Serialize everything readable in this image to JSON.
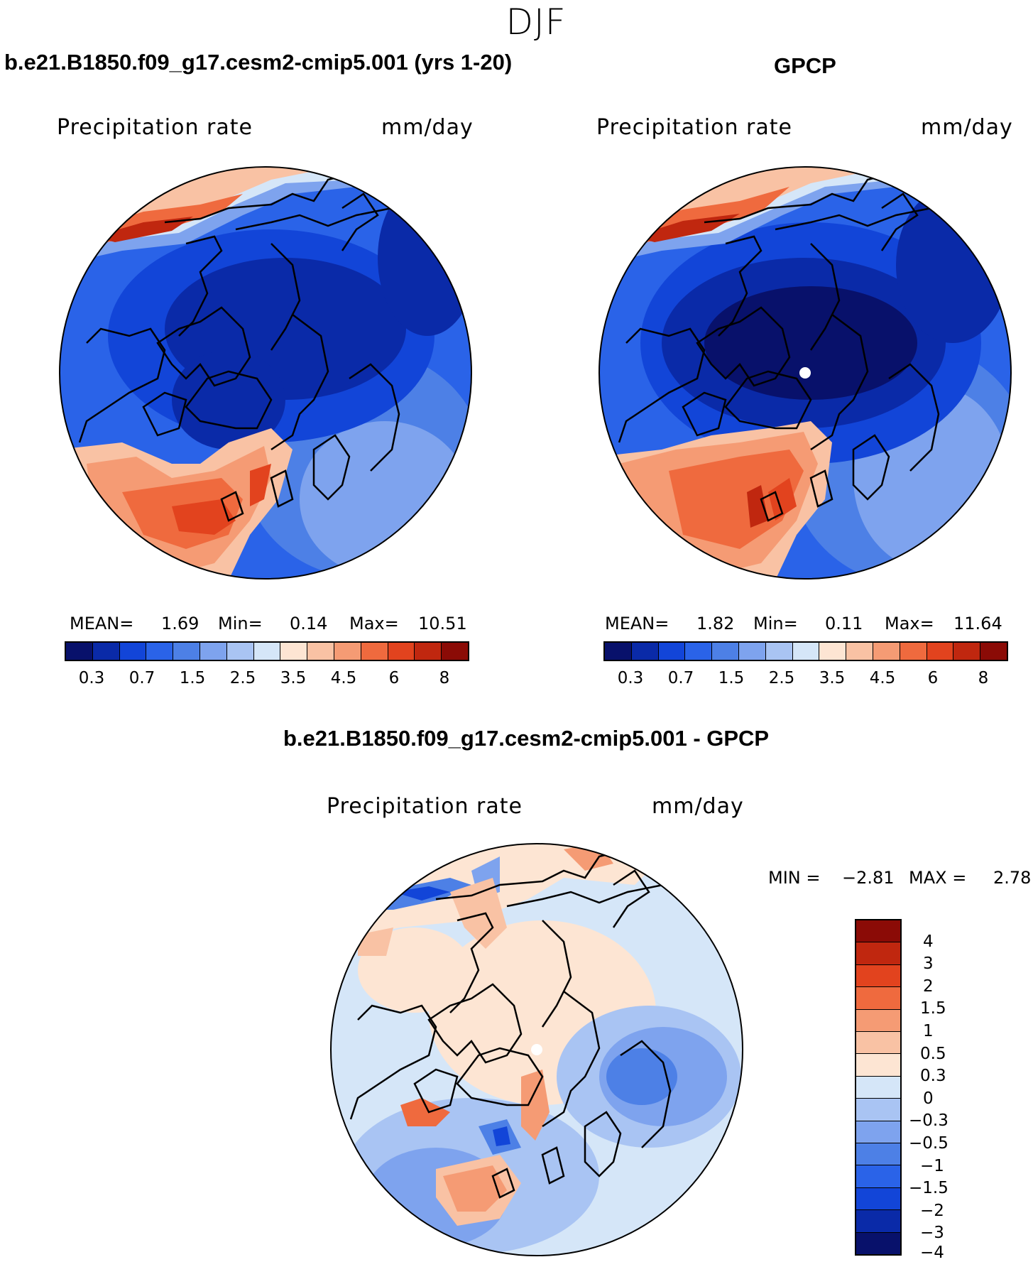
{
  "season": "DJF",
  "panels": [
    {
      "title": "b.e21.B1850.f09_g17.cesm2-cmip5.001 (yrs 1-20)",
      "variable": "Precipitation rate",
      "units": "mm/day",
      "mean_label": "MEAN=",
      "mean": "1.69",
      "min_label": "Min=",
      "min": "0.14",
      "max_label": "Max=",
      "max": "10.51"
    },
    {
      "title": "GPCP",
      "variable": "Precipitation rate",
      "units": "mm/day",
      "mean_label": "MEAN=",
      "mean": "1.82",
      "min_label": "Min=",
      "min": "0.11",
      "max_label": "Max=",
      "max": "11.64"
    }
  ],
  "diff": {
    "title": "b.e21.B1850.f09_g17.cesm2-cmip5.001 - GPCP",
    "variable": "Precipitation rate",
    "units": "mm/day",
    "min_label": "MIN =",
    "min": "−2.81",
    "max_label": "MAX =",
    "max": "2.78"
  },
  "colorbar_abs": {
    "colors": [
      "#08116b",
      "#0a2aa8",
      "#1245d8",
      "#2a63e8",
      "#4d80e6",
      "#7ea3ee",
      "#a9c4f3",
      "#d5e6f8",
      "#fde5d3",
      "#f9c2a4",
      "#f59b74",
      "#ef6a3e",
      "#e2431e",
      "#c0270f",
      "#8b0b06"
    ],
    "labels": [
      "0.3",
      "0.7",
      "1.5",
      "2.5",
      "3.5",
      "4.5",
      "6",
      "8"
    ]
  },
  "colorbar_diff": {
    "colors": [
      "#8b0b06",
      "#c0270f",
      "#e2431e",
      "#ef6a3e",
      "#f59b74",
      "#f9c2a4",
      "#fde5d3",
      "#d5e6f8",
      "#a9c4f3",
      "#7ea3ee",
      "#4d80e6",
      "#2a63e8",
      "#1245d8",
      "#0a2aa8",
      "#08116b"
    ],
    "labels": [
      "4",
      "3",
      "2",
      "1.5",
      "1",
      "0.5",
      "0.3",
      "0",
      "−0.3",
      "−0.5",
      "−1",
      "−1.5",
      "−2",
      "−3",
      "−4"
    ]
  }
}
